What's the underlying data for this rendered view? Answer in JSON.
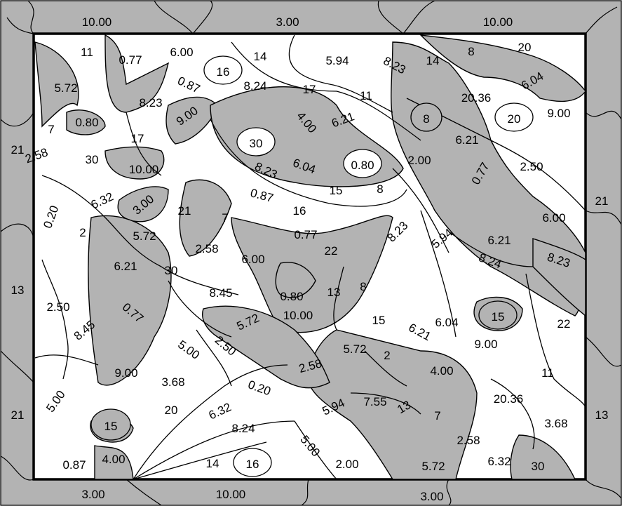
{
  "puzzle": {
    "colors": {
      "background": "#ffffff",
      "shaded": "#b3b3b3",
      "lines": "#000000"
    },
    "border_labels": [
      "10.00",
      "3.00",
      "10.00",
      "21",
      "21",
      "13",
      "21",
      "13",
      "3.00",
      "10.00",
      "3.00"
    ],
    "region_labels": [
      "11",
      "0.77",
      "6.00",
      "16",
      "14",
      "5.94",
      "8.23",
      "14",
      "8",
      "20",
      "5.72",
      "0.87",
      "8.24",
      "17",
      "11",
      "20.36",
      "6.04",
      "8.23",
      "8",
      "20",
      "9.00",
      "7",
      "0.80",
      "9.00",
      "4.00",
      "6.21",
      "17",
      "30",
      "6.21",
      "21",
      "2.58",
      "30",
      "10.00",
      "8.23",
      "6.04",
      "0.80",
      "2.00",
      "2.50",
      "0.77",
      "0.87",
      "15",
      "8",
      "6.32",
      "3.00",
      "21",
      "7",
      "16",
      "0.20",
      "6.00",
      "2",
      "5.72",
      "0.77",
      "8.23",
      "5.94",
      "6.21",
      "22",
      "8.24",
      "8.23",
      "6.21",
      "30",
      "2.58",
      "6.00",
      "13",
      "8.45",
      "0.80",
      "8",
      "10.00",
      "13",
      "2.50",
      "0.77",
      "5.72",
      "15",
      "6.21",
      "6.04",
      "15",
      "22",
      "8.45",
      "5.00",
      "2.50",
      "9.00",
      "5.72",
      "2.58",
      "2",
      "5.00",
      "9.00",
      "3.68",
      "0.20",
      "4.00",
      "11",
      "20",
      "6.32",
      "5.94",
      "7.55",
      "13",
      "20.36",
      "7",
      "15",
      "8.24",
      "3.68",
      "2.58",
      "5.00",
      "0.87",
      "4.00",
      "14",
      "16",
      "2.00",
      "5.72",
      "6.32",
      "30"
    ]
  }
}
